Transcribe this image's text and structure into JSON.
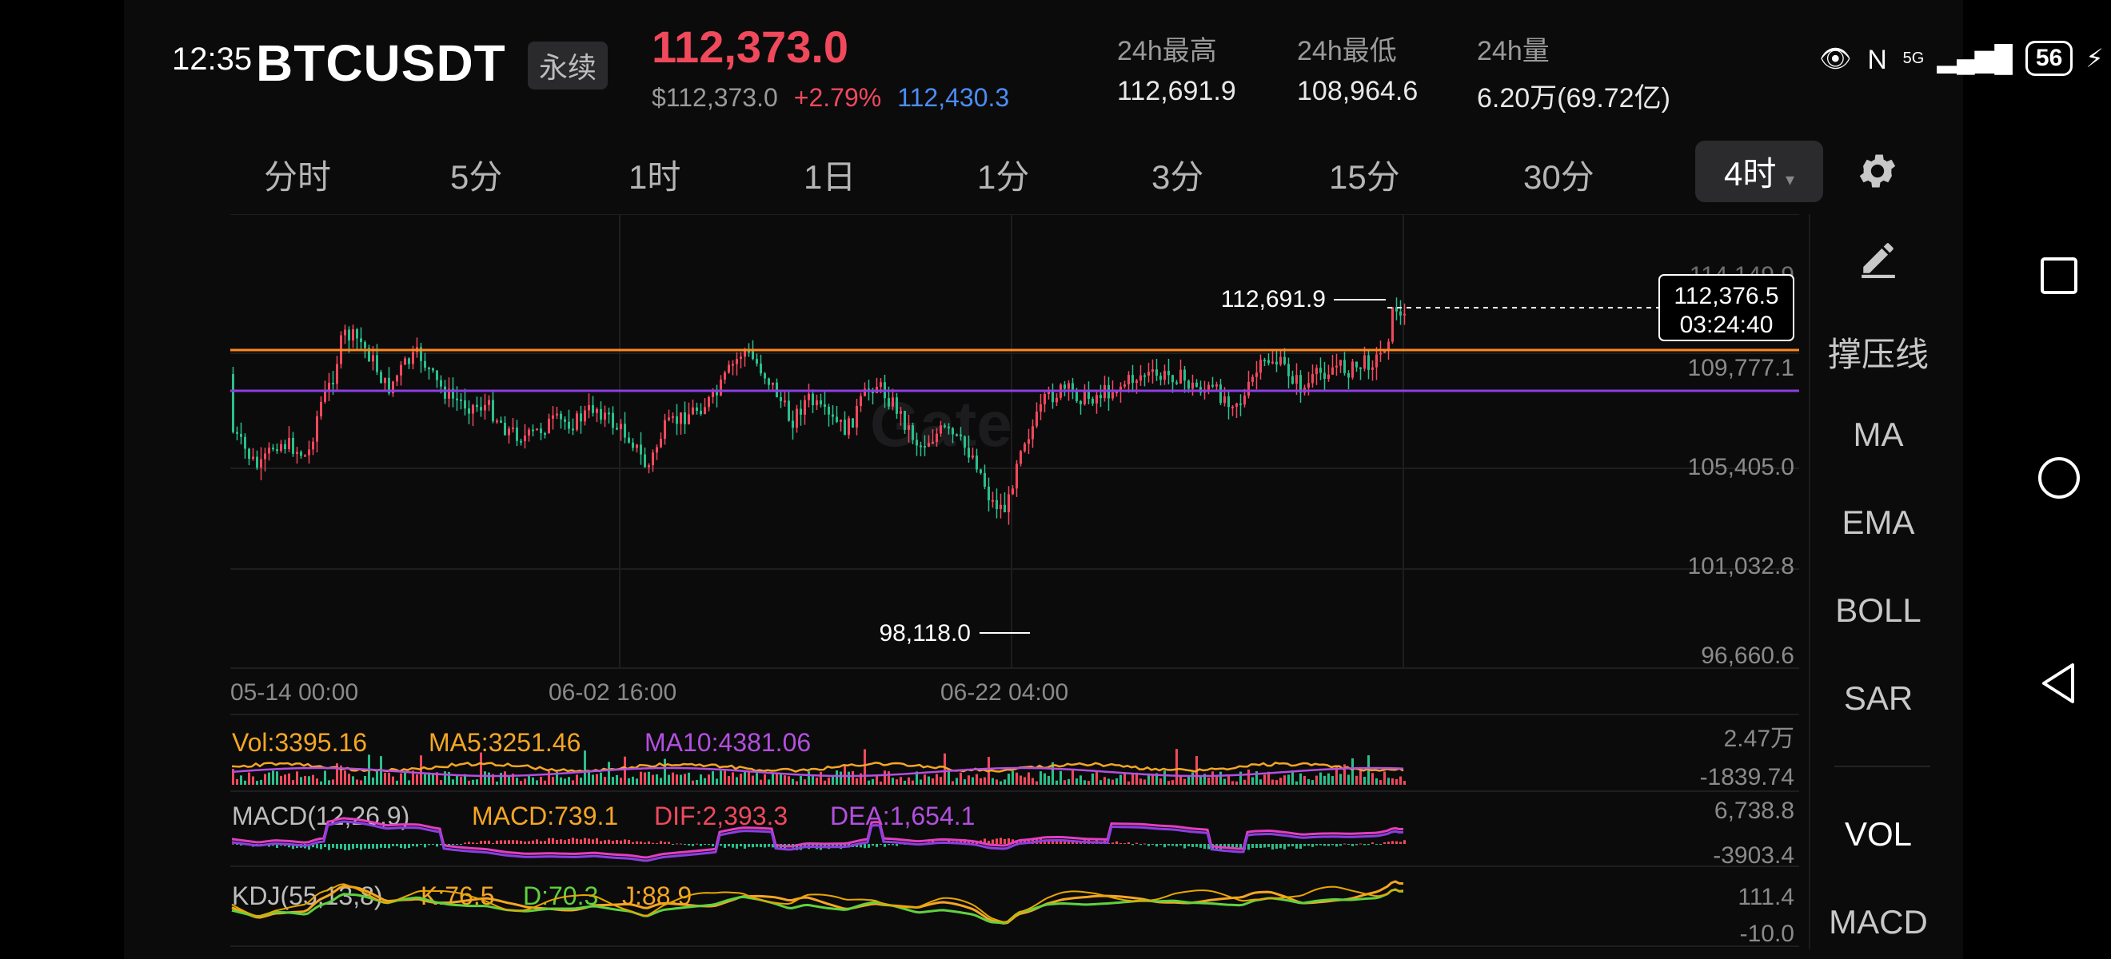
{
  "status_bar": {
    "time": "12:35",
    "battery": "56",
    "network": "5G"
  },
  "header": {
    "symbol": "BTCUSDT",
    "contract_type": "永续",
    "last_price": "112,373.0",
    "usd_price": "$112,373.0",
    "change_pct": "+2.79%",
    "mark_price": "112,430.3",
    "stats": [
      {
        "label": "24h最高",
        "value": "112,691.9"
      },
      {
        "label": "24h最低",
        "value": "108,964.6"
      },
      {
        "label": "24h量",
        "value": "6.20万(69.72亿)"
      }
    ]
  },
  "intervals": [
    "分时",
    "5分",
    "1时",
    "1日",
    "1分",
    "3分",
    "15分",
    "30分",
    "4时"
  ],
  "active_interval": "4时",
  "side_panel": [
    "撑压线",
    "MA",
    "EMA",
    "BOLL",
    "SAR",
    "VOL",
    "MACD"
  ],
  "chart": {
    "price_axis": [
      "114,149.9",
      "109,777.1",
      "105,405.0",
      "101,032.8",
      "96,660.6"
    ],
    "time_axis": [
      "05-14 00:00",
      "06-02 16:00",
      "06-22 04:00"
    ],
    "high_marker": "112,691.9",
    "low_marker": "98,118.0",
    "current_box": {
      "price": "112,376.5",
      "countdown": "03:24:40"
    },
    "watermark": "Gate",
    "lines": {
      "orange": "#ff8a1f",
      "purple": "#8b3fe0"
    },
    "up_color": "#f0495c",
    "down_color": "#2bbf8a"
  },
  "indicators": {
    "vol": {
      "vol": "Vol:3395.16",
      "ma5": "MA5:3251.46",
      "ma10": "MA10:4381.06",
      "max": "2.47万",
      "min": "-1839.74"
    },
    "macd": {
      "name": "MACD(12,26,9)",
      "macd": "MACD:739.1",
      "dif": "DIF:2,393.3",
      "dea": "DEA:1,654.1",
      "max": "6,738.8",
      "min": "-3903.4"
    },
    "kdj": {
      "name": "KDJ(55,13,8)",
      "k": "K:76.5",
      "d": "D:70.3",
      "j": "J:88.9",
      "max": "111.4",
      "min": "-10.0"
    }
  }
}
